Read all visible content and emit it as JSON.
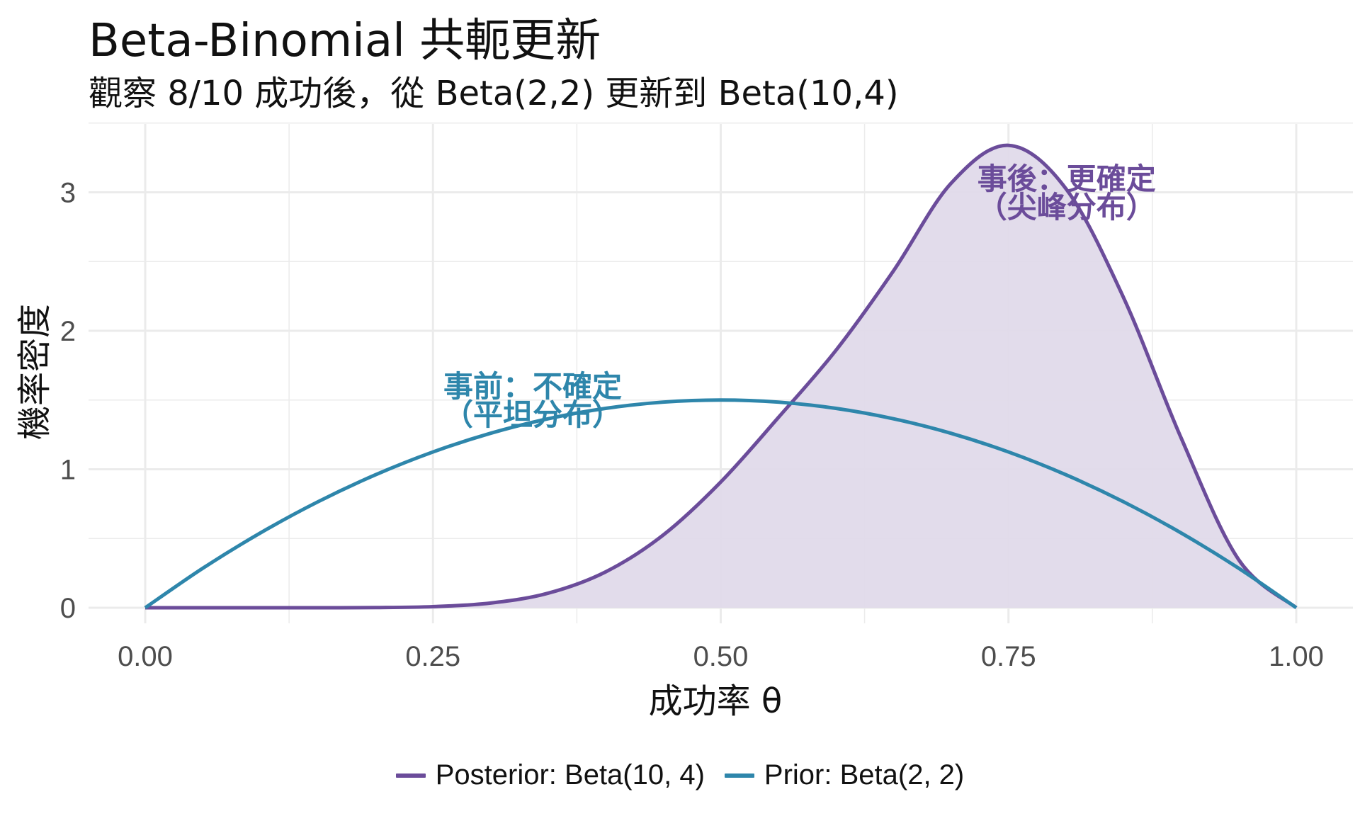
{
  "colors": {
    "posterior": "#6B4C9A",
    "posterior_fill": "#E0DAEA",
    "prior": "#2E86AB",
    "grid": "#EBEBEB",
    "background": "#FFFFFF"
  },
  "chart_data": {
    "type": "area",
    "title": "Beta-Binomial 共軛更新",
    "subtitle": "觀察 8/10 成功後，從 Beta(2,2) 更新到 Beta(10,4)",
    "xlabel": "成功率 θ",
    "ylabel": "機率密度",
    "xlim": [
      0,
      1
    ],
    "ylim": [
      0,
      3.5
    ],
    "grid": true,
    "legend_position": "bottom",
    "x_ticks": [
      "0.00",
      "0.25",
      "0.50",
      "0.75",
      "1.00"
    ],
    "y_ticks": [
      "0",
      "1",
      "2",
      "3"
    ],
    "x": [
      0.0,
      0.05,
      0.1,
      0.15,
      0.2,
      0.25,
      0.3,
      0.35,
      0.4,
      0.45,
      0.5,
      0.55,
      0.6,
      0.65,
      0.7,
      0.75,
      0.8,
      0.85,
      0.9,
      0.95,
      1.0
    ],
    "series": [
      {
        "name": "Posterior: Beta(10, 4)",
        "color": "#6B4C9A",
        "filled": true,
        "values": [
          0.0,
          0.0,
          0.0,
          0.0,
          0.001,
          0.008,
          0.034,
          0.105,
          0.259,
          0.525,
          0.908,
          1.373,
          1.858,
          2.432,
          3.064,
          3.339,
          3.025,
          2.239,
          1.226,
          0.347,
          0.0
        ]
      },
      {
        "name": "Prior: Beta(2, 2)",
        "color": "#2E86AB",
        "filled": false,
        "values": [
          0.0,
          0.285,
          0.54,
          0.765,
          0.96,
          1.125,
          1.26,
          1.365,
          1.44,
          1.485,
          1.5,
          1.485,
          1.44,
          1.365,
          1.26,
          1.125,
          0.96,
          0.765,
          0.54,
          0.285,
          0.0
        ]
      }
    ],
    "annotations": [
      {
        "lines": [
          "事後：更確定",
          "（尖峰分布）"
        ],
        "x": 0.75,
        "y": 3.0,
        "series": "posterior"
      },
      {
        "lines": [
          "事前：不確定",
          "（平坦分布）"
        ],
        "x": 0.2,
        "y": 1.5,
        "series": "prior"
      }
    ],
    "legend": [
      {
        "label": "Posterior: Beta(10, 4)",
        "color": "#6B4C9A"
      },
      {
        "label": "Prior: Beta(2, 2)",
        "color": "#2E86AB"
      }
    ]
  }
}
